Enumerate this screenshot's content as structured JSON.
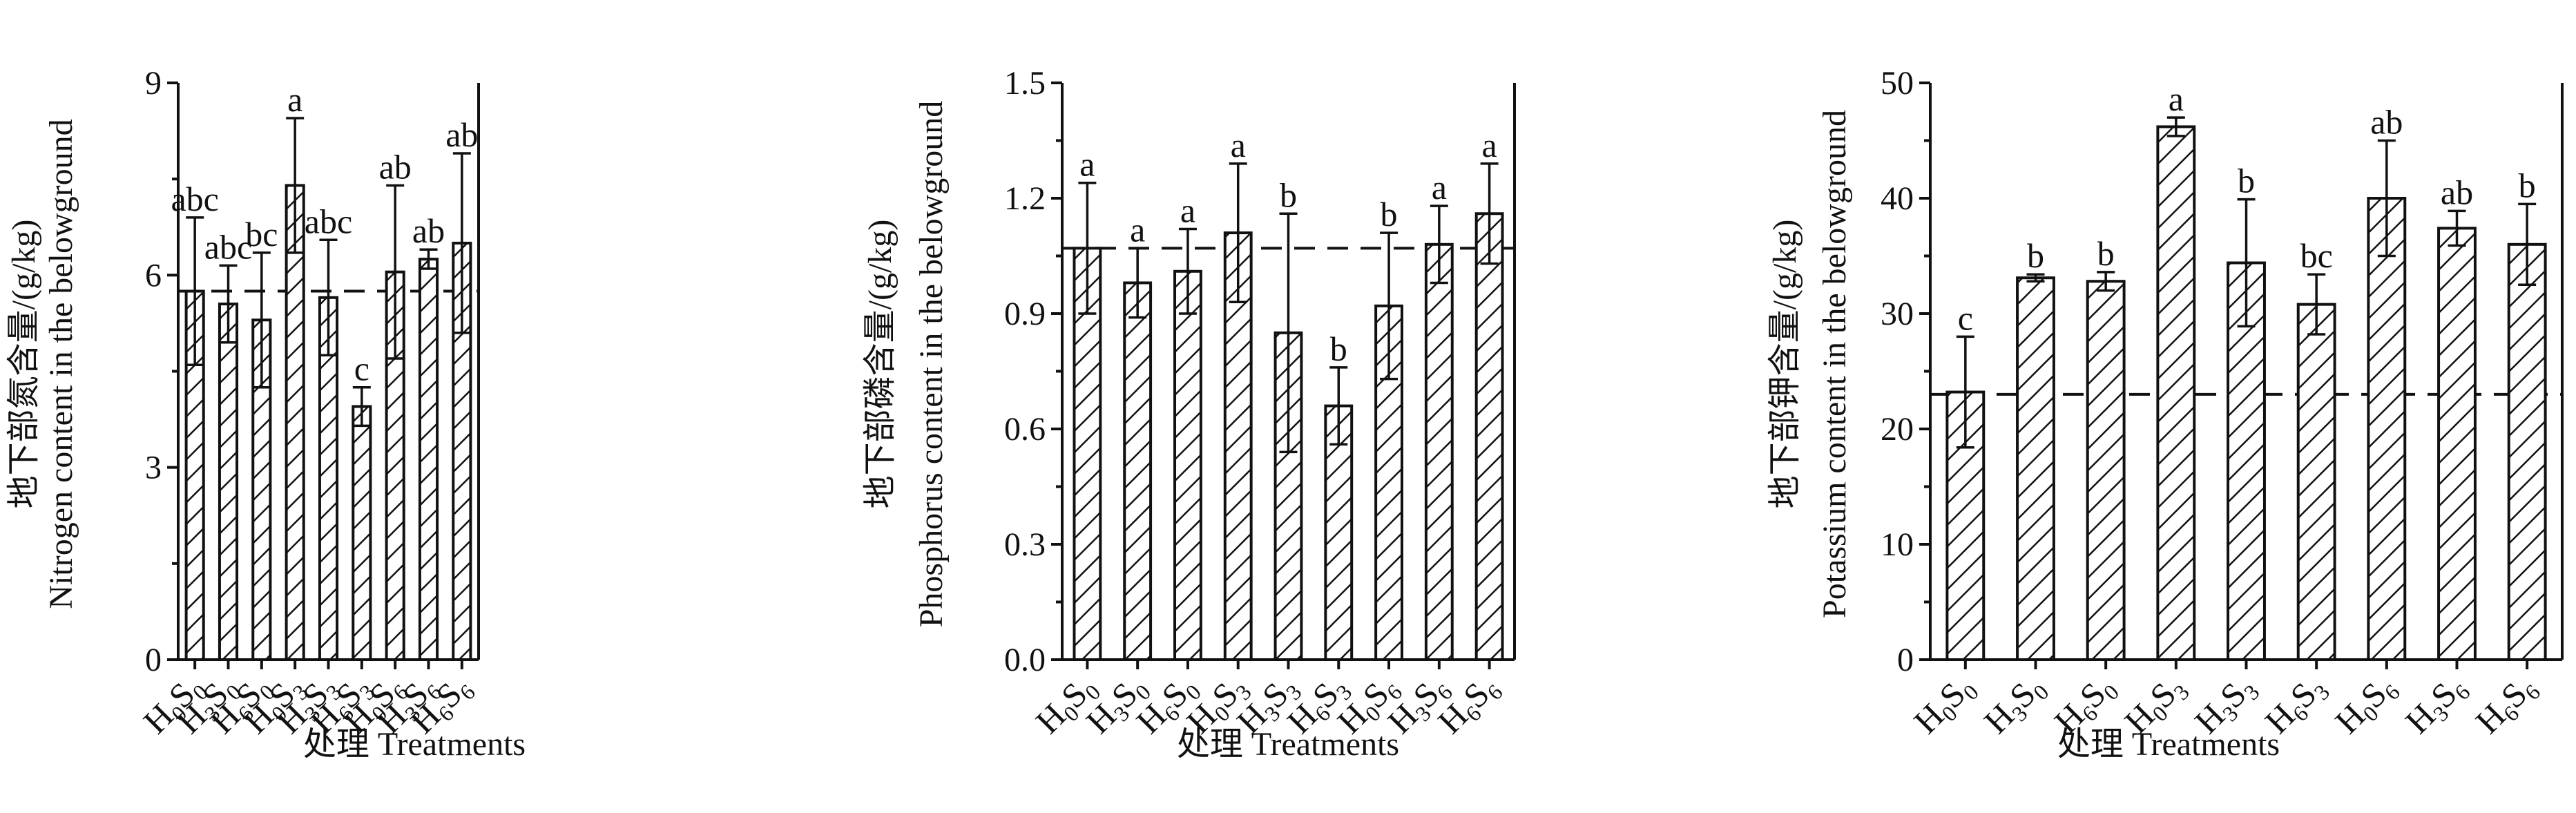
{
  "chart_data": [
    {
      "type": "bar",
      "ylabel_cn": "地下部氮含量/(g/kg)",
      "ylabel_en": "Nitrogen content in the belowground",
      "xlabel": "处理 Treatments",
      "ylim": [
        0,
        9
      ],
      "yticks": [
        "0",
        "3",
        "6",
        "9"
      ],
      "categories": [
        "H0S0",
        "H3S0",
        "H6S0",
        "H0S3",
        "H3S3",
        "H6S3",
        "H0S6",
        "H3S6",
        "H6S6"
      ],
      "values": [
        5.75,
        5.55,
        5.3,
        7.4,
        5.65,
        3.95,
        6.05,
        6.25,
        6.5
      ],
      "errors": [
        1.15,
        0.6,
        1.05,
        1.05,
        0.9,
        0.3,
        1.35,
        0.15,
        1.4
      ],
      "letters": [
        "abc",
        "abc",
        "bc",
        "a",
        "abc",
        "c",
        "ab",
        "ab",
        "ab"
      ],
      "reference_value": 5.75
    },
    {
      "type": "bar",
      "ylabel_cn": "地下部磷含量/(g/kg)",
      "ylabel_en": "Phosphorus content in the belowground",
      "xlabel": "处理 Treatments",
      "ylim": [
        0,
        1.5
      ],
      "yticks": [
        "0.0",
        "0.3",
        "0.6",
        "0.9",
        "1.2",
        "1.5"
      ],
      "categories": [
        "H0S0",
        "H3S0",
        "H6S0",
        "H0S3",
        "H3S3",
        "H6S3",
        "H0S6",
        "H3S6",
        "H6S6"
      ],
      "values": [
        1.07,
        0.98,
        1.01,
        1.11,
        0.85,
        0.66,
        0.92,
        1.08,
        1.16
      ],
      "errors": [
        0.17,
        0.09,
        0.11,
        0.18,
        0.31,
        0.1,
        0.19,
        0.1,
        0.13
      ],
      "letters": [
        "a",
        "a",
        "a",
        "a",
        "b",
        "b",
        "b",
        "a",
        "a"
      ],
      "reference_value": 1.07
    },
    {
      "type": "bar",
      "ylabel_cn": "地下部钾含量/(g/kg)",
      "ylabel_en": "Potassium content in the belowground",
      "xlabel": "处理 Treatments",
      "ylim": [
        0,
        50
      ],
      "yticks": [
        "0",
        "10",
        "20",
        "30",
        "40",
        "50"
      ],
      "categories": [
        "H0S0",
        "H3S0",
        "H6S0",
        "H0S3",
        "H3S3",
        "H6S3",
        "H0S6",
        "H3S6",
        "H6S6"
      ],
      "values": [
        23.2,
        33.1,
        32.8,
        46.2,
        34.4,
        30.8,
        40.0,
        37.4,
        36.0
      ],
      "errors": [
        4.8,
        0.3,
        0.8,
        0.8,
        5.5,
        2.6,
        5.0,
        1.5,
        3.5
      ],
      "letters": [
        "c",
        "b",
        "b",
        "a",
        "b",
        "bc",
        "ab",
        "ab",
        "b"
      ],
      "reference_value": 23.0
    }
  ]
}
